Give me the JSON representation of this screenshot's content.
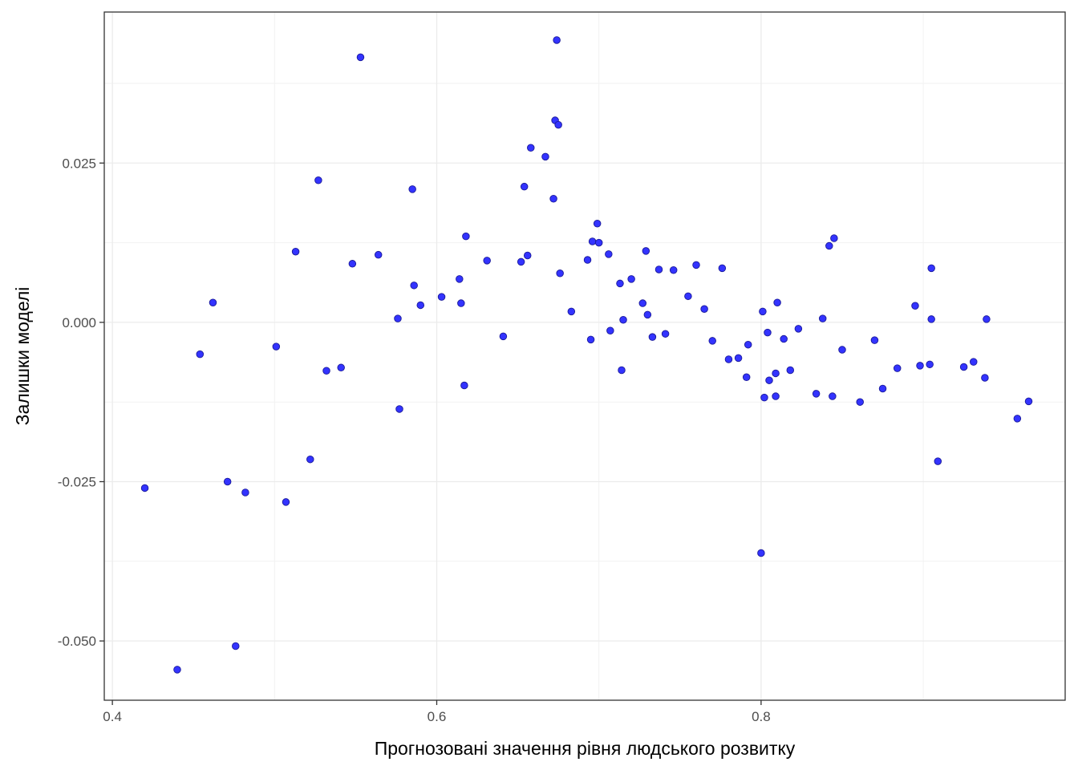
{
  "chart_data": {
    "type": "scatter",
    "title": "",
    "xlabel": "Прогнозовані значення рівня людського розвитку",
    "ylabel": "Залишки моделі",
    "xlim": [
      0.395,
      0.9875
    ],
    "ylim": [
      -0.0593,
      0.0487
    ],
    "x_ticks": [
      0.4,
      0.6,
      0.8
    ],
    "x_tick_labels": [
      "0.4",
      "0.6",
      "0.8"
    ],
    "y_ticks": [
      -0.05,
      -0.025,
      0.0,
      0.025
    ],
    "y_tick_labels": [
      "-0.050",
      "-0.025",
      "0.000",
      "0.025"
    ],
    "grid": true,
    "point_color": "#3333ff",
    "point_edge_color": "#1a1a99",
    "points": [
      {
        "x": 0.42,
        "y": -0.026
      },
      {
        "x": 0.44,
        "y": -0.0545
      },
      {
        "x": 0.454,
        "y": -0.005
      },
      {
        "x": 0.462,
        "y": 0.0031
      },
      {
        "x": 0.471,
        "y": -0.025
      },
      {
        "x": 0.476,
        "y": -0.0508
      },
      {
        "x": 0.482,
        "y": -0.0267
      },
      {
        "x": 0.501,
        "y": -0.0038
      },
      {
        "x": 0.507,
        "y": -0.0282
      },
      {
        "x": 0.513,
        "y": 0.0111
      },
      {
        "x": 0.522,
        "y": -0.0215
      },
      {
        "x": 0.527,
        "y": 0.0223
      },
      {
        "x": 0.532,
        "y": -0.0076
      },
      {
        "x": 0.541,
        "y": -0.0071
      },
      {
        "x": 0.548,
        "y": 0.0092
      },
      {
        "x": 0.553,
        "y": 0.0416
      },
      {
        "x": 0.564,
        "y": 0.0106
      },
      {
        "x": 0.576,
        "y": 0.0006
      },
      {
        "x": 0.577,
        "y": -0.0136
      },
      {
        "x": 0.585,
        "y": 0.0209
      },
      {
        "x": 0.586,
        "y": 0.0058
      },
      {
        "x": 0.59,
        "y": 0.0027
      },
      {
        "x": 0.603,
        "y": 0.004
      },
      {
        "x": 0.614,
        "y": 0.0068
      },
      {
        "x": 0.615,
        "y": 0.003
      },
      {
        "x": 0.617,
        "y": -0.0099
      },
      {
        "x": 0.618,
        "y": 0.0135
      },
      {
        "x": 0.631,
        "y": 0.0097
      },
      {
        "x": 0.641,
        "y": -0.0022
      },
      {
        "x": 0.652,
        "y": 0.0095
      },
      {
        "x": 0.654,
        "y": 0.0213
      },
      {
        "x": 0.656,
        "y": 0.0105
      },
      {
        "x": 0.658,
        "y": 0.0274
      },
      {
        "x": 0.667,
        "y": 0.026
      },
      {
        "x": 0.672,
        "y": 0.0194
      },
      {
        "x": 0.673,
        "y": 0.0317
      },
      {
        "x": 0.674,
        "y": 0.0443
      },
      {
        "x": 0.675,
        "y": 0.031
      },
      {
        "x": 0.676,
        "y": 0.0077
      },
      {
        "x": 0.683,
        "y": 0.0017
      },
      {
        "x": 0.693,
        "y": 0.0098
      },
      {
        "x": 0.695,
        "y": -0.0027
      },
      {
        "x": 0.696,
        "y": 0.0127
      },
      {
        "x": 0.699,
        "y": 0.0155
      },
      {
        "x": 0.7,
        "y": 0.0125
      },
      {
        "x": 0.706,
        "y": 0.0107
      },
      {
        "x": 0.707,
        "y": -0.0013
      },
      {
        "x": 0.713,
        "y": 0.0061
      },
      {
        "x": 0.714,
        "y": -0.0075
      },
      {
        "x": 0.715,
        "y": 0.0004
      },
      {
        "x": 0.72,
        "y": 0.0068
      },
      {
        "x": 0.727,
        "y": 0.003
      },
      {
        "x": 0.729,
        "y": 0.0112
      },
      {
        "x": 0.73,
        "y": 0.0012
      },
      {
        "x": 0.733,
        "y": -0.0023
      },
      {
        "x": 0.737,
        "y": 0.0083
      },
      {
        "x": 0.741,
        "y": -0.0018
      },
      {
        "x": 0.746,
        "y": 0.0082
      },
      {
        "x": 0.755,
        "y": 0.0041
      },
      {
        "x": 0.76,
        "y": 0.009
      },
      {
        "x": 0.765,
        "y": 0.0021
      },
      {
        "x": 0.77,
        "y": -0.0029
      },
      {
        "x": 0.776,
        "y": 0.0085
      },
      {
        "x": 0.78,
        "y": -0.0058
      },
      {
        "x": 0.786,
        "y": -0.0056
      },
      {
        "x": 0.791,
        "y": -0.0086
      },
      {
        "x": 0.792,
        "y": -0.0035
      },
      {
        "x": 0.8,
        "y": -0.0362
      },
      {
        "x": 0.801,
        "y": 0.0017
      },
      {
        "x": 0.802,
        "y": -0.0118
      },
      {
        "x": 0.804,
        "y": -0.0016
      },
      {
        "x": 0.805,
        "y": -0.0091
      },
      {
        "x": 0.809,
        "y": -0.008
      },
      {
        "x": 0.809,
        "y": -0.0116
      },
      {
        "x": 0.81,
        "y": 0.0031
      },
      {
        "x": 0.814,
        "y": -0.0026
      },
      {
        "x": 0.818,
        "y": -0.0075
      },
      {
        "x": 0.823,
        "y": -0.001
      },
      {
        "x": 0.834,
        "y": -0.0112
      },
      {
        "x": 0.838,
        "y": 0.0006
      },
      {
        "x": 0.842,
        "y": 0.012
      },
      {
        "x": 0.844,
        "y": -0.0116
      },
      {
        "x": 0.845,
        "y": 0.0132
      },
      {
        "x": 0.85,
        "y": -0.0043
      },
      {
        "x": 0.861,
        "y": -0.0125
      },
      {
        "x": 0.87,
        "y": -0.0028
      },
      {
        "x": 0.875,
        "y": -0.0104
      },
      {
        "x": 0.884,
        "y": -0.0072
      },
      {
        "x": 0.895,
        "y": 0.0026
      },
      {
        "x": 0.898,
        "y": -0.0068
      },
      {
        "x": 0.904,
        "y": -0.0066
      },
      {
        "x": 0.905,
        "y": 0.0085
      },
      {
        "x": 0.905,
        "y": 0.0005
      },
      {
        "x": 0.909,
        "y": -0.0218
      },
      {
        "x": 0.925,
        "y": -0.007
      },
      {
        "x": 0.931,
        "y": -0.0062
      },
      {
        "x": 0.938,
        "y": -0.0087
      },
      {
        "x": 0.939,
        "y": 0.0005
      },
      {
        "x": 0.958,
        "y": -0.0151
      },
      {
        "x": 0.965,
        "y": -0.0124
      }
    ]
  }
}
